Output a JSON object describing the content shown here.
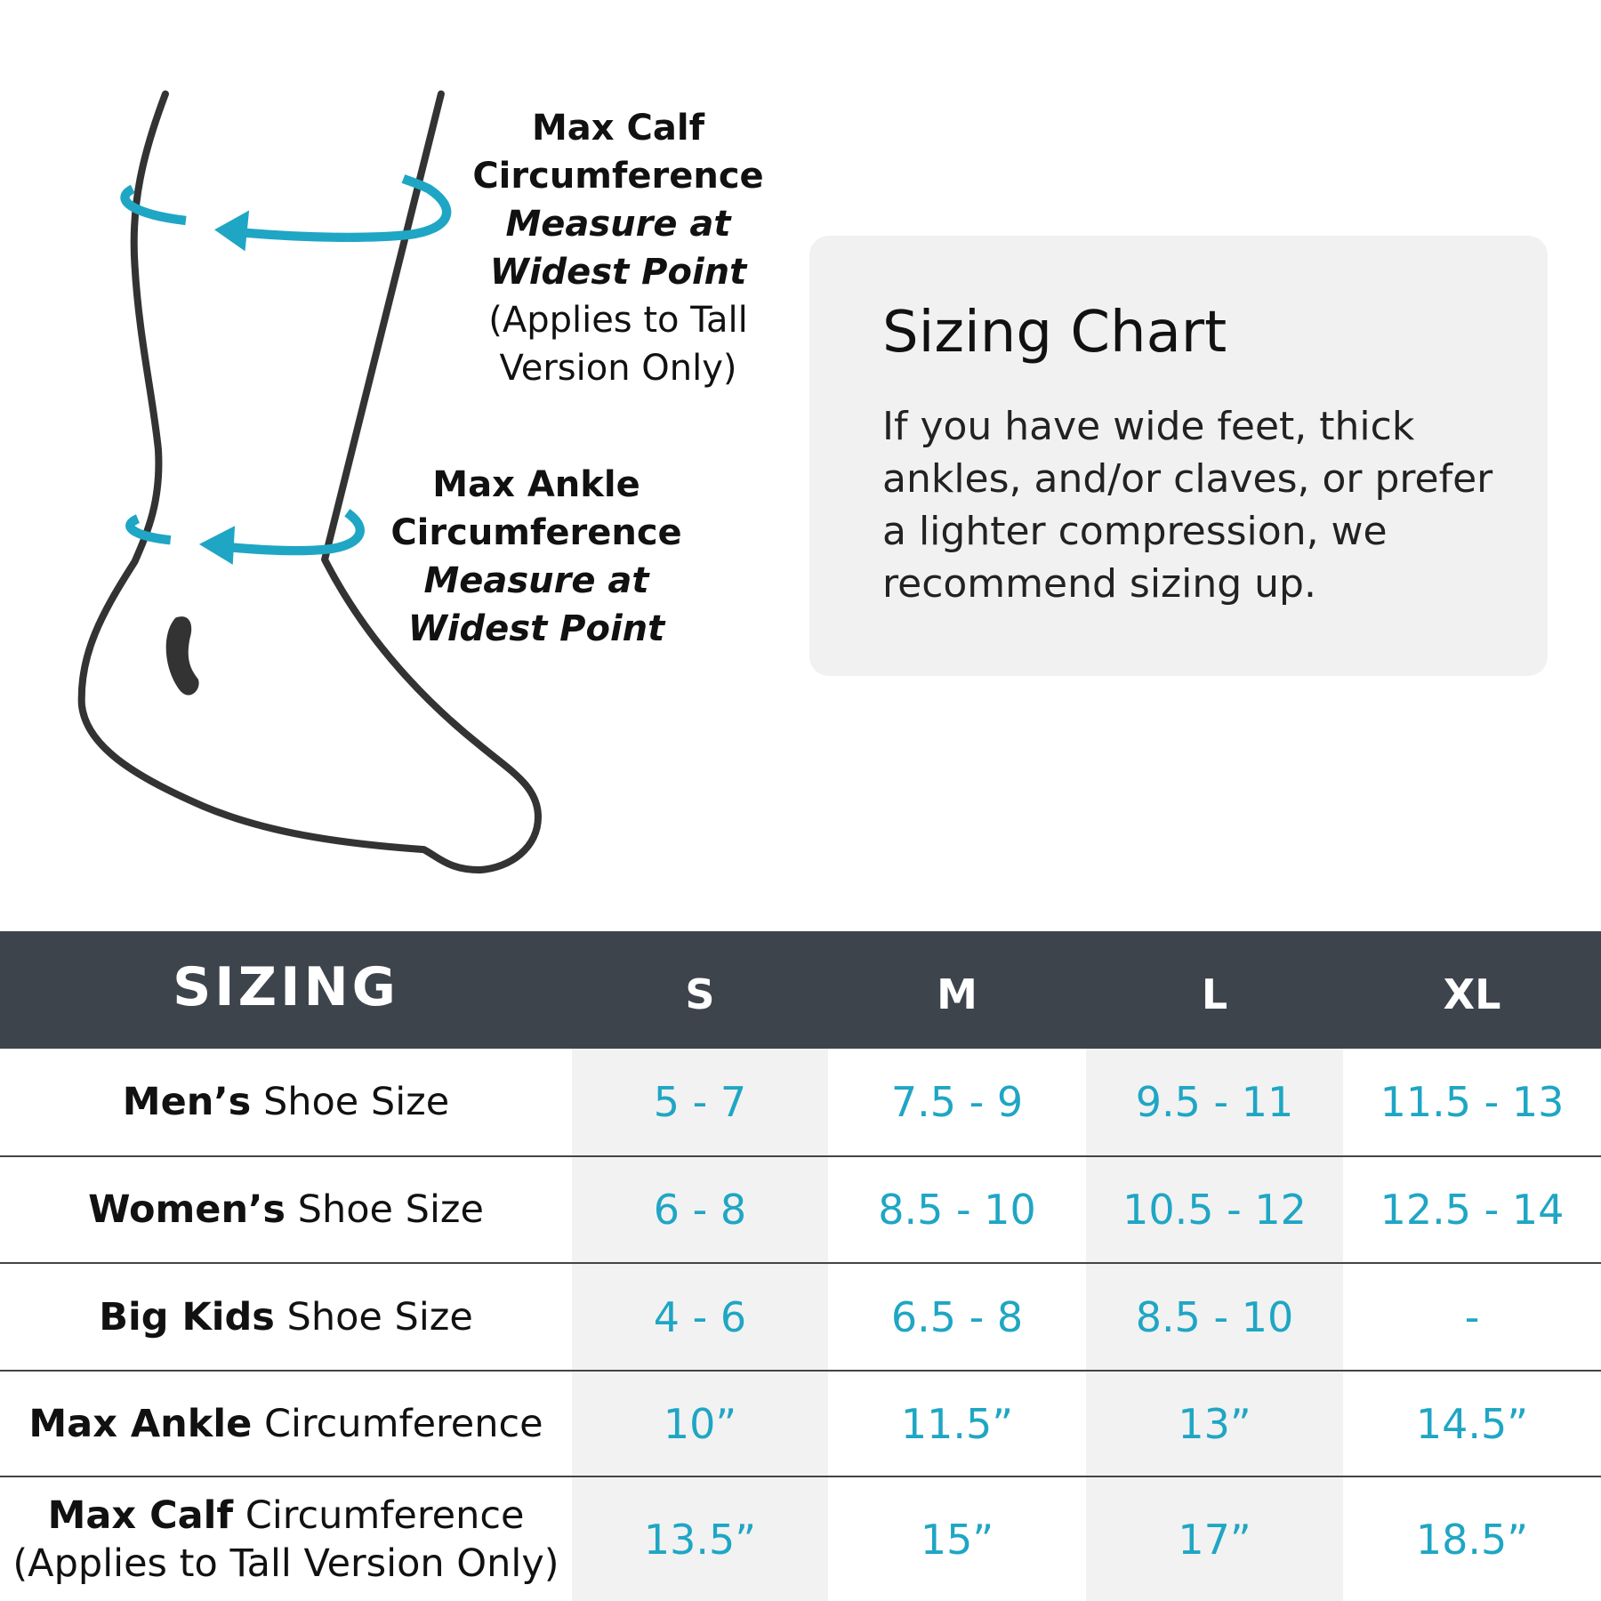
{
  "colors": {
    "accent": "#1fa6c4",
    "header_bg": "#3d444c",
    "shade": "#f2f2f2",
    "outline": "#333333"
  },
  "illustration": {
    "calf_label": {
      "title": "Max Calf",
      "title2": "Circumference",
      "measure1": "Measure at",
      "measure2": "Widest Point",
      "note1": "(Applies to Tall",
      "note2": "Version Only)"
    },
    "ankle_label": {
      "title": "Max Ankle",
      "title2": "Circumference",
      "measure1": "Measure at",
      "measure2": "Widest Point"
    }
  },
  "card": {
    "title": "Sizing Chart",
    "body": "If you have wide feet, thick ankles, and/or claves, or prefer a lighter compression, we recommend sizing up."
  },
  "table": {
    "header": [
      "SIZING",
      "S",
      "M",
      "L",
      "XL"
    ],
    "rows": [
      {
        "bold": "Men’s",
        "rest": " Shoe Size",
        "note": "",
        "values": [
          "5 - 7",
          "7.5 - 9",
          "9.5 - 11",
          "11.5 - 13"
        ]
      },
      {
        "bold": "Women’s",
        "rest": " Shoe Size",
        "note": "",
        "values": [
          "6 - 8",
          "8.5 - 10",
          "10.5 - 12",
          "12.5 - 14"
        ]
      },
      {
        "bold": "Big Kids",
        "rest": " Shoe Size",
        "note": "",
        "values": [
          "4 - 6",
          "6.5 - 8",
          "8.5 - 10",
          "-"
        ]
      },
      {
        "bold": "Max Ankle",
        "rest": " Circumference",
        "note": "",
        "values": [
          "10”",
          "11.5”",
          "13”",
          "14.5”"
        ]
      },
      {
        "bold": "Max Calf",
        "rest": " Circumference",
        "note": "(Applies to Tall Version Only)",
        "values": [
          "13.5”",
          "15”",
          "17”",
          "18.5”"
        ]
      }
    ]
  }
}
